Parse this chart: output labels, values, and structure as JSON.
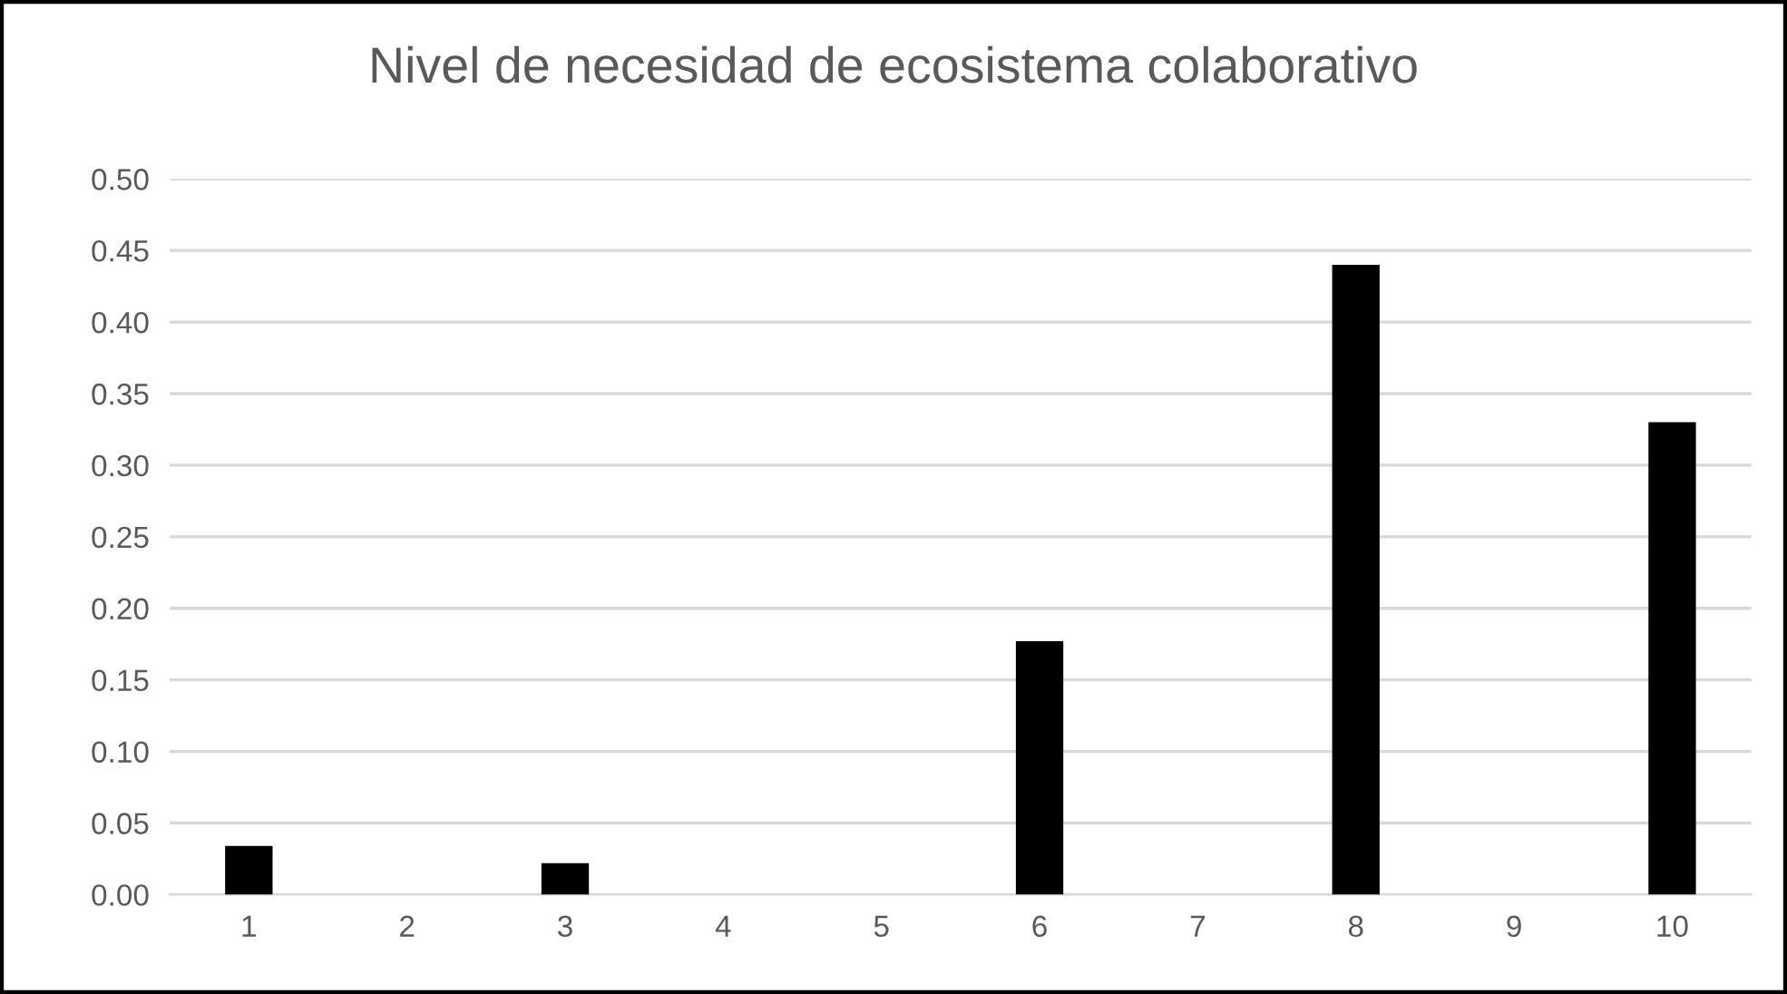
{
  "chart_data": {
    "type": "bar",
    "title": "Nivel de necesidad de ecosistema colaborativo",
    "categories": [
      "1",
      "2",
      "3",
      "4",
      "5",
      "6",
      "7",
      "8",
      "9",
      "10"
    ],
    "values": [
      0.034,
      0,
      0.022,
      0,
      0,
      0.177,
      0,
      0.44,
      0,
      0.33
    ],
    "color": "#000000",
    "ylim": [
      0,
      0.5
    ],
    "yticks": [
      {
        "value": 0,
        "label": "0.00"
      },
      {
        "value": 0.05,
        "label": "0.05"
      },
      {
        "value": 0.1,
        "label": "0.10"
      },
      {
        "value": 0.15,
        "label": "0.15"
      },
      {
        "value": 0.2,
        "label": "0.20"
      },
      {
        "value": 0.25,
        "label": "0.25"
      },
      {
        "value": 0.3,
        "label": "0.30"
      },
      {
        "value": 0.35,
        "label": "0.35"
      },
      {
        "value": 0.4,
        "label": "0.40"
      },
      {
        "value": 0.45,
        "label": "0.45"
      },
      {
        "value": 0.5,
        "label": "0.50"
      }
    ],
    "grid": "y"
  }
}
